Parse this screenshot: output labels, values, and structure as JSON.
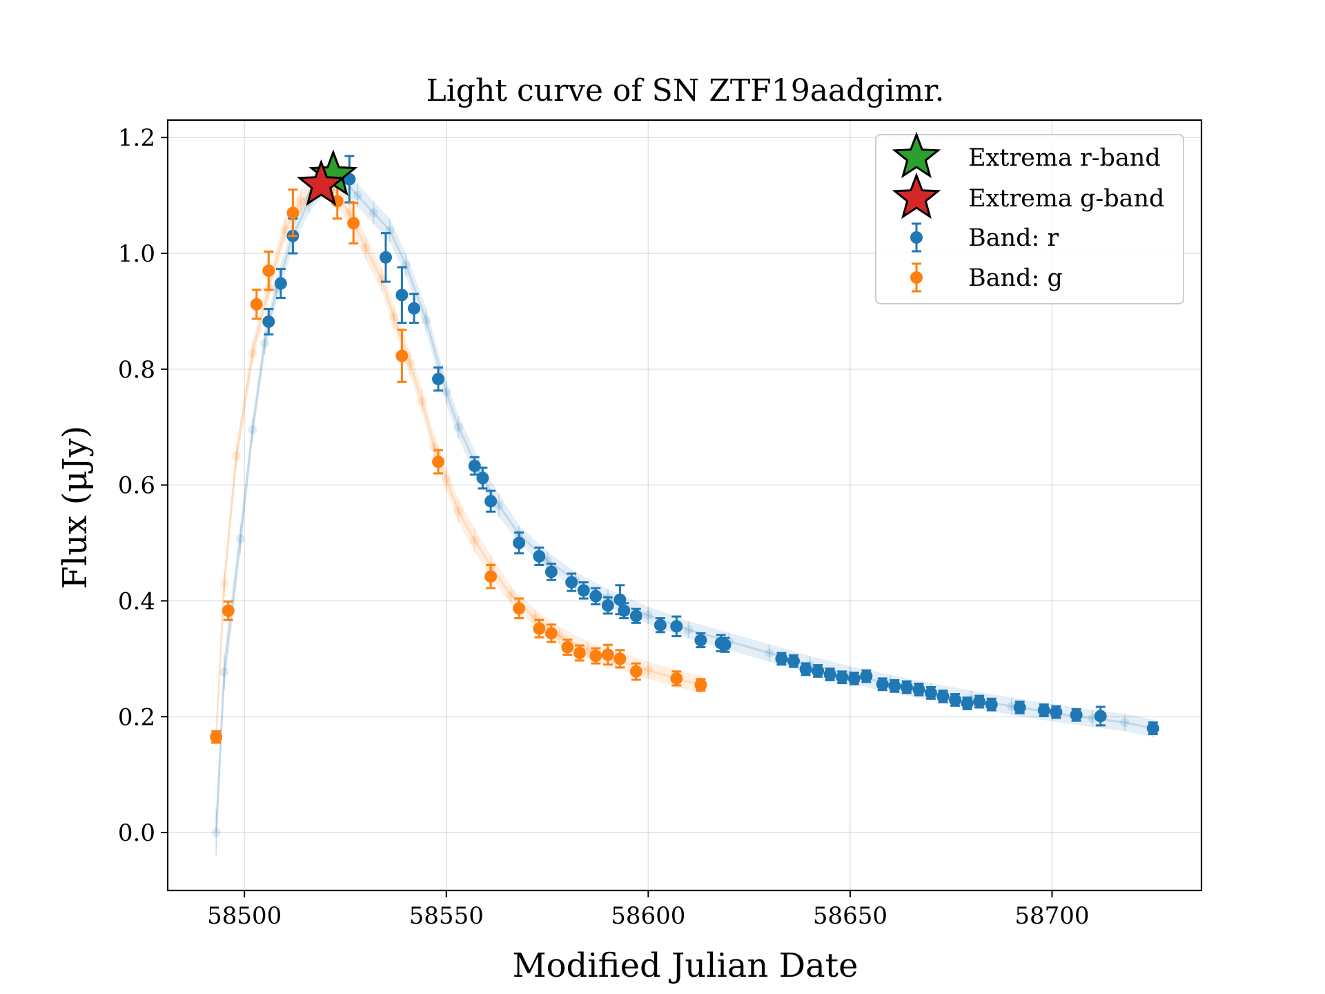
{
  "chart_data": {
    "type": "scatter",
    "title": "Light curve of SN ZTF19aadgimr.",
    "xlabel": "Modified Julian Date",
    "ylabel": "Flux (μJy)",
    "xlim": [
      58481,
      58737
    ],
    "ylim": [
      -0.1,
      1.23
    ],
    "xticks": [
      58500,
      58550,
      58600,
      58650,
      58700
    ],
    "yticks": [
      0.0,
      0.2,
      0.4,
      0.6,
      0.8,
      1.0,
      1.2
    ],
    "grid": true,
    "legend": "top-right",
    "legend_entries": [
      "Extrema r-band",
      "Extrema g-band",
      "Band: r",
      "Band: g"
    ],
    "colors": {
      "r": "#1f77b4",
      "g": "#ff7f0e",
      "extrema_r": "#2ca02c",
      "extrema_g": "#d62728"
    },
    "extrema": [
      {
        "band": "r",
        "x": 58522,
        "y": 1.135
      },
      {
        "band": "g",
        "x": 58519,
        "y": 1.118
      }
    ],
    "series": [
      {
        "name": "Band: r",
        "points": [
          [
            58506,
            0.882,
            0.022
          ],
          [
            58509,
            0.948,
            0.025
          ],
          [
            58512,
            1.03,
            0.03
          ],
          [
            58526,
            1.128,
            0.04
          ],
          [
            58535,
            0.993,
            0.042
          ],
          [
            58539,
            0.928,
            0.048
          ],
          [
            58542,
            0.905,
            0.025
          ],
          [
            58548,
            0.783,
            0.02
          ],
          [
            58557,
            0.633,
            0.015
          ],
          [
            58559,
            0.612,
            0.018
          ],
          [
            58561,
            0.572,
            0.018
          ],
          [
            58568,
            0.5,
            0.018
          ],
          [
            58573,
            0.477,
            0.015
          ],
          [
            58576,
            0.45,
            0.014
          ],
          [
            58581,
            0.432,
            0.015
          ],
          [
            58584,
            0.418,
            0.014
          ],
          [
            58587,
            0.408,
            0.014
          ],
          [
            58590,
            0.392,
            0.014
          ],
          [
            58593,
            0.402,
            0.025
          ],
          [
            58594,
            0.383,
            0.013
          ],
          [
            58597,
            0.374,
            0.012
          ],
          [
            58603,
            0.358,
            0.012
          ],
          [
            58607,
            0.356,
            0.017
          ],
          [
            58613,
            0.332,
            0.012
          ],
          [
            58618,
            0.327,
            0.014
          ],
          [
            58619,
            0.324,
            0.012
          ],
          [
            58633,
            0.3,
            0.01
          ],
          [
            58636,
            0.296,
            0.01
          ],
          [
            58639,
            0.282,
            0.01
          ],
          [
            58642,
            0.279,
            0.01
          ],
          [
            58645,
            0.273,
            0.01
          ],
          [
            58648,
            0.268,
            0.01
          ],
          [
            58651,
            0.266,
            0.01
          ],
          [
            58654,
            0.27,
            0.01
          ],
          [
            58658,
            0.256,
            0.01
          ],
          [
            58661,
            0.253,
            0.01
          ],
          [
            58664,
            0.251,
            0.01
          ],
          [
            58667,
            0.247,
            0.01
          ],
          [
            58670,
            0.241,
            0.01
          ],
          [
            58673,
            0.235,
            0.01
          ],
          [
            58676,
            0.229,
            0.01
          ],
          [
            58679,
            0.223,
            0.01
          ],
          [
            58682,
            0.226,
            0.01
          ],
          [
            58685,
            0.221,
            0.01
          ],
          [
            58692,
            0.216,
            0.01
          ],
          [
            58698,
            0.211,
            0.01
          ],
          [
            58701,
            0.208,
            0.01
          ],
          [
            58706,
            0.203,
            0.01
          ],
          [
            58712,
            0.201,
            0.016
          ],
          [
            58725,
            0.18,
            0.01
          ]
        ]
      },
      {
        "name": "Band: g",
        "points": [
          [
            58493,
            0.165,
            0.01
          ],
          [
            58496,
            0.383,
            0.016
          ],
          [
            58503,
            0.912,
            0.025
          ],
          [
            58506,
            0.97,
            0.033
          ],
          [
            58512,
            1.07,
            0.04
          ],
          [
            58523,
            1.09,
            0.03
          ],
          [
            58527,
            1.052,
            0.035
          ],
          [
            58539,
            0.823,
            0.045
          ],
          [
            58548,
            0.64,
            0.02
          ],
          [
            58561,
            0.442,
            0.02
          ],
          [
            58568,
            0.387,
            0.017
          ],
          [
            58573,
            0.352,
            0.015
          ],
          [
            58576,
            0.344,
            0.015
          ],
          [
            58580,
            0.32,
            0.013
          ],
          [
            58583,
            0.31,
            0.013
          ],
          [
            58587,
            0.305,
            0.013
          ],
          [
            58590,
            0.307,
            0.017
          ],
          [
            58593,
            0.3,
            0.015
          ],
          [
            58597,
            0.278,
            0.014
          ],
          [
            58607,
            0.266,
            0.012
          ],
          [
            58613,
            0.255,
            0.01
          ]
        ]
      }
    ],
    "model_curves": [
      {
        "band": "r",
        "points": [
          [
            58493,
            0.0,
            0.04
          ],
          [
            58495,
            0.277,
            0.03
          ],
          [
            58499,
            0.507,
            0.025
          ],
          [
            58502,
            0.695,
            0.02
          ],
          [
            58505,
            0.845,
            0.02
          ],
          [
            58508,
            0.94,
            0.02
          ],
          [
            58512,
            1.03,
            0.02
          ],
          [
            58516,
            1.09,
            0.02
          ],
          [
            58520,
            1.125,
            0.02
          ],
          [
            58524,
            1.13,
            0.02
          ],
          [
            58528,
            1.1,
            0.02
          ],
          [
            58532,
            1.07,
            0.02
          ],
          [
            58536,
            1.04,
            0.02
          ],
          [
            58540,
            0.98,
            0.02
          ],
          [
            58545,
            0.885,
            0.02
          ],
          [
            58550,
            0.76,
            0.02
          ],
          [
            58553,
            0.7,
            0.02
          ],
          [
            58558,
            0.625,
            0.02
          ],
          [
            58563,
            0.565,
            0.02
          ],
          [
            58568,
            0.515,
            0.015
          ],
          [
            58575,
            0.47,
            0.015
          ],
          [
            58582,
            0.435,
            0.015
          ],
          [
            58590,
            0.405,
            0.015
          ],
          [
            58600,
            0.375,
            0.015
          ],
          [
            58610,
            0.35,
            0.015
          ],
          [
            58620,
            0.33,
            0.015
          ],
          [
            58630,
            0.31,
            0.015
          ],
          [
            58640,
            0.29,
            0.015
          ],
          [
            58650,
            0.272,
            0.015
          ],
          [
            58660,
            0.257,
            0.015
          ],
          [
            58670,
            0.243,
            0.015
          ],
          [
            58680,
            0.23,
            0.015
          ],
          [
            58690,
            0.218,
            0.015
          ],
          [
            58700,
            0.207,
            0.015
          ],
          [
            58710,
            0.197,
            0.015
          ],
          [
            58718,
            0.19,
            0.015
          ],
          [
            58725,
            0.18,
            0.015
          ]
        ]
      },
      {
        "band": "g",
        "points": [
          [
            58493,
            0.165,
            0.01
          ],
          [
            58495,
            0.43,
            0.02
          ],
          [
            58498,
            0.65,
            0.02
          ],
          [
            58502,
            0.828,
            0.02
          ],
          [
            58506,
            0.94,
            0.02
          ],
          [
            58510,
            1.04,
            0.02
          ],
          [
            58514,
            1.09,
            0.02
          ],
          [
            58518,
            1.115,
            0.02
          ],
          [
            58522,
            1.11,
            0.02
          ],
          [
            58526,
            1.07,
            0.02
          ],
          [
            58530,
            1.01,
            0.02
          ],
          [
            58534,
            0.955,
            0.02
          ],
          [
            58537,
            0.89,
            0.02
          ],
          [
            58541,
            0.81,
            0.02
          ],
          [
            58544,
            0.745,
            0.02
          ],
          [
            58547,
            0.665,
            0.02
          ],
          [
            58550,
            0.61,
            0.02
          ],
          [
            58553,
            0.555,
            0.02
          ],
          [
            58557,
            0.505,
            0.02
          ],
          [
            58561,
            0.46,
            0.02
          ],
          [
            58566,
            0.41,
            0.015
          ],
          [
            58572,
            0.37,
            0.015
          ],
          [
            58578,
            0.34,
            0.015
          ],
          [
            58585,
            0.315,
            0.015
          ],
          [
            58592,
            0.298,
            0.015
          ],
          [
            58600,
            0.28,
            0.015
          ],
          [
            58607,
            0.266,
            0.015
          ],
          [
            58613,
            0.255,
            0.015
          ]
        ]
      }
    ]
  }
}
